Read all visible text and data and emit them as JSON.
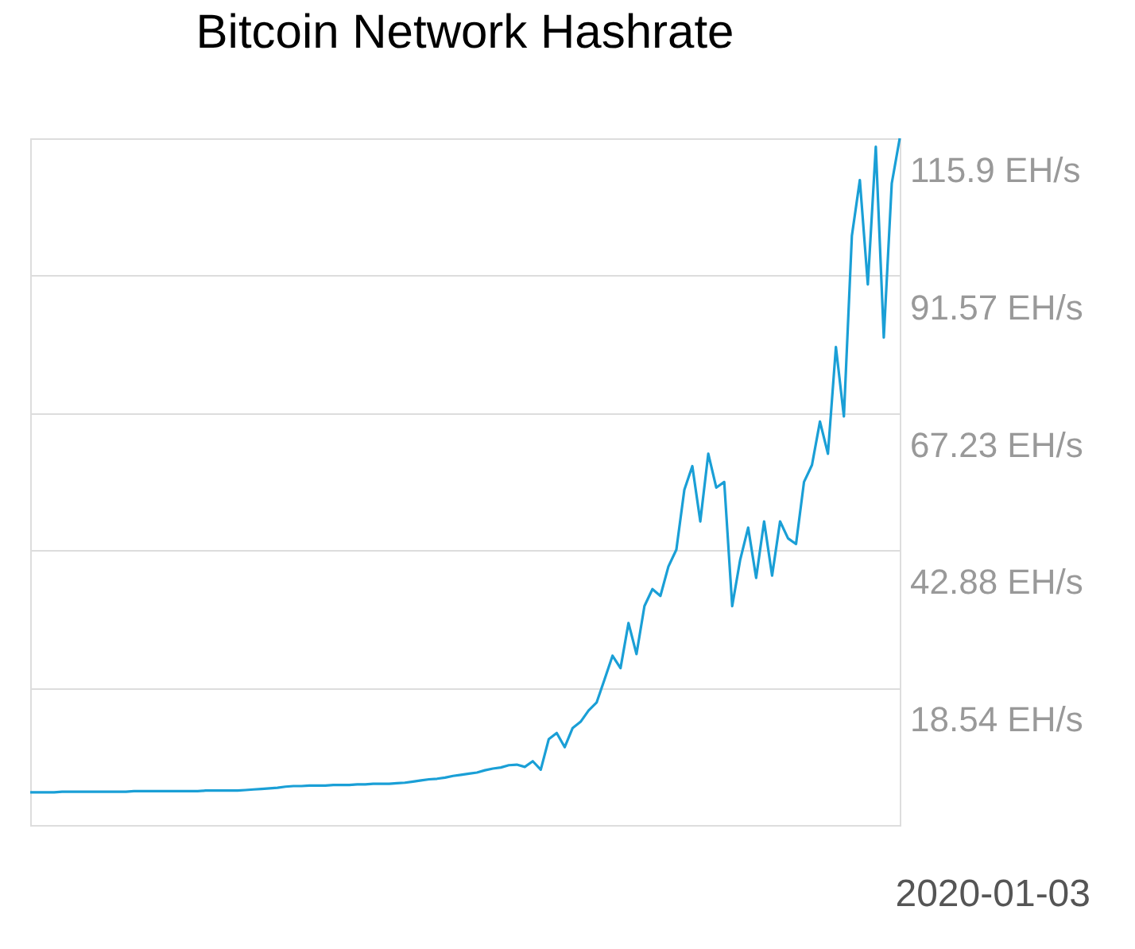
{
  "chart_data": {
    "type": "line",
    "title": "Bitcoin Network Hashrate",
    "categories": [
      null,
      null,
      null,
      null,
      null,
      null,
      null,
      null,
      null,
      null,
      null,
      null,
      null,
      null,
      null,
      null,
      null,
      null,
      null,
      null,
      null,
      null,
      null,
      null,
      null,
      null,
      null,
      null,
      null,
      null,
      null,
      null,
      null,
      null,
      null,
      null,
      null,
      null,
      null,
      null,
      null,
      null,
      null,
      null,
      null,
      null,
      null,
      null,
      null,
      null,
      null,
      null,
      null,
      null,
      null,
      null,
      null,
      null,
      null,
      null,
      null,
      null,
      null,
      null,
      null,
      null,
      null,
      null,
      null,
      null,
      null,
      null,
      null,
      null,
      null,
      null,
      null,
      null,
      null,
      null,
      null,
      null,
      null,
      null,
      null,
      null,
      null,
      null,
      null,
      null,
      null,
      null,
      null,
      null,
      null,
      null,
      null,
      null,
      null,
      null,
      null,
      null,
      null,
      null,
      null,
      null,
      null,
      null,
      null,
      null
    ],
    "series": [
      {
        "color": "#1a9fd6",
        "values": [
          0,
          0,
          0,
          0,
          0.1,
          0.1,
          0.1,
          0.1,
          0.1,
          0.1,
          0.1,
          0.1,
          0.1,
          0.2,
          0.2,
          0.2,
          0.2,
          0.2,
          0.2,
          0.2,
          0.2,
          0.2,
          0.3,
          0.3,
          0.3,
          0.3,
          0.3,
          0.4,
          0.5,
          0.6,
          0.7,
          0.8,
          1.0,
          1.1,
          1.1,
          1.2,
          1.2,
          1.2,
          1.3,
          1.3,
          1.3,
          1.4,
          1.4,
          1.5,
          1.5,
          1.5,
          1.6,
          1.7,
          1.9,
          2.1,
          2.3,
          2.4,
          2.6,
          2.9,
          3.1,
          3.3,
          3.5,
          3.9,
          4.2,
          4.4,
          4.8,
          4.9,
          4.5,
          5.5,
          4.0,
          9.4,
          10.5,
          8.0,
          11.4,
          12.5,
          14.5,
          15.9,
          20.0,
          24.2,
          22.0,
          30.0,
          24.5,
          33.0,
          36.0,
          34.8,
          40.0,
          43.0,
          53.6,
          57.8,
          48.0,
          60.0,
          54.0,
          55.0,
          33.0,
          41.2,
          46.9,
          38.0,
          48.0,
          38.4,
          48.0,
          45.0,
          44.0,
          55.0,
          58.0,
          65.7,
          60.0,
          78.9,
          66.6,
          98.6,
          108.5,
          90.0,
          114.4,
          80.6,
          107.9,
          115.9
        ]
      }
    ],
    "ylim": [
      -5.8,
      115.9
    ],
    "yticks": [
      {
        "value": -5.8,
        "label": null
      },
      {
        "value": 18.54,
        "label": "18.54 EH/s"
      },
      {
        "value": 42.88,
        "label": "42.88 EH/s"
      },
      {
        "value": 67.23,
        "label": "67.23 EH/s"
      },
      {
        "value": 91.57,
        "label": "91.57 EH/s"
      },
      {
        "value": 115.9,
        "label": "115.9 EH/s"
      }
    ],
    "annotations": [
      "2020-01-03"
    ],
    "tick_labels": "y",
    "grid": "y",
    "legend": false,
    "marker": "none",
    "line_style": "solid"
  }
}
